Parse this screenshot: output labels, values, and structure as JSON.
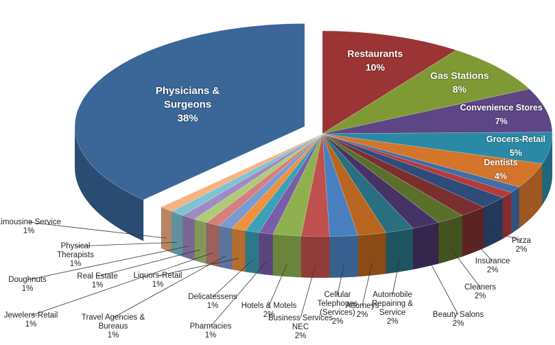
{
  "chart_data": {
    "type": "pie",
    "categories": [
      "Restaurants",
      "Gas Stations",
      "Convenience Stores",
      "Grocers-Retail",
      "Dentists",
      null,
      null,
      "Pizza",
      "Insurance",
      "Cleaners",
      "Beauty Salons",
      "Automobile Repairing & Service",
      "Attorneys",
      "Cellular Telephones (Services)",
      "Business Services NEC",
      "Hotels & Motels",
      "Pharmacies",
      "Delicatessens",
      "Liquors-Retail",
      "Travel Agencies & Bureaus",
      "Jewelers-Retail",
      "Real Estate",
      "Doughnuts",
      "Physical Therapists",
      "Limousine Service",
      "Physicians & Surgeons"
    ],
    "values": [
      10,
      8,
      7,
      5,
      4,
      1,
      1,
      2,
      2,
      2,
      2,
      2,
      2,
      2,
      2,
      2,
      1,
      1,
      1,
      1,
      1,
      1,
      1,
      1,
      1,
      38
    ],
    "value_labels": [
      "10%",
      "8%",
      "7%",
      "5%",
      "4%",
      null,
      null,
      "2%",
      "2%",
      "2%",
      "2%",
      "2%",
      "2%",
      "2%",
      "2%",
      "2%",
      "1%",
      "1%",
      "1%",
      "1%",
      "1%",
      "1%",
      "1%",
      "1%",
      "1%",
      "38%"
    ],
    "colors": [
      "#9b3535",
      "#7f9a35",
      "#5e4585",
      "#2a8aa5",
      "#d3752b",
      "#3f6ea8",
      "#b33a3a",
      "#2f4b7a",
      "#7a2f2f",
      "#5a6f2a",
      "#463366",
      "#2a6f80",
      "#b8651f",
      "#4a7fbf",
      "#c0504d",
      "#8fb04f",
      "#7b5ca8",
      "#3ba0b8",
      "#f0913f",
      "#7a9bd0",
      "#d47f7d",
      "#aecb78",
      "#a08ac4",
      "#7fc3d3",
      "#f5b283",
      "#3a6698"
    ]
  }
}
